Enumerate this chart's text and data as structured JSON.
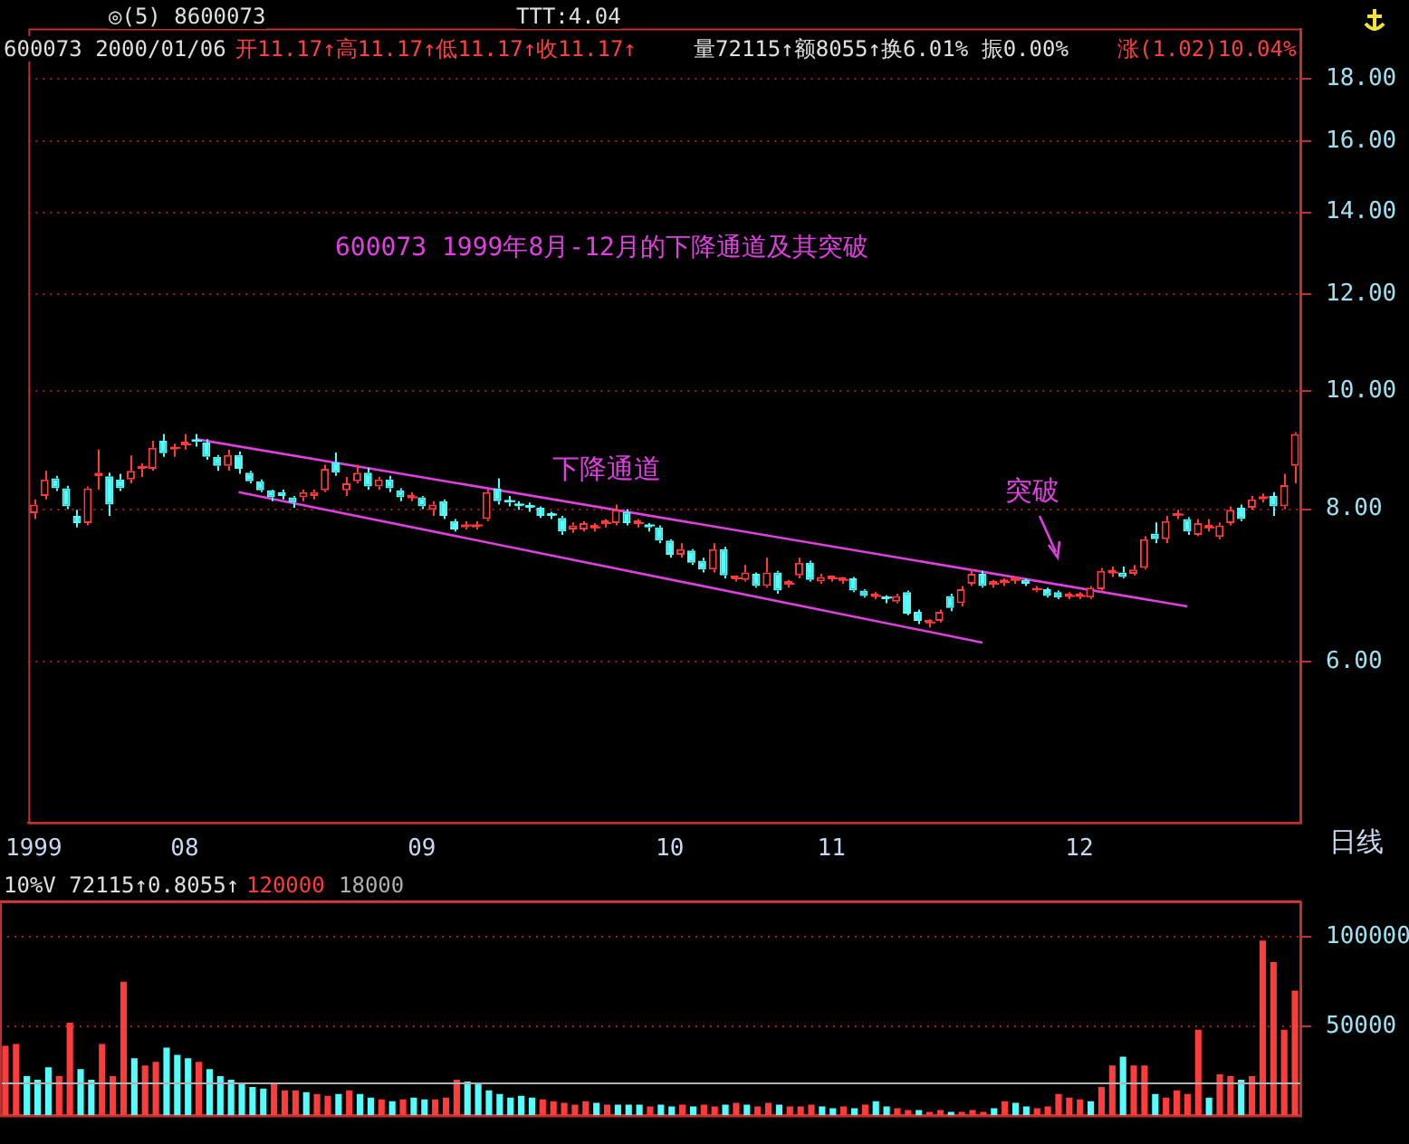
{
  "chart_data": [
    {
      "type": "candlestick",
      "title": "600073 1999年8月-12月的下降通道及其突破",
      "categories": [
        "1999",
        null,
        null,
        null,
        null,
        null,
        null,
        null,
        null,
        null,
        null,
        null,
        null,
        null,
        "08",
        null,
        null,
        null,
        null,
        null,
        null,
        null,
        null,
        null,
        null,
        null,
        null,
        null,
        null,
        null,
        null,
        null,
        null,
        null,
        null,
        null,
        "09",
        null,
        null,
        null,
        null,
        null,
        null,
        null,
        null,
        null,
        null,
        null,
        null,
        null,
        null,
        null,
        null,
        null,
        null,
        null,
        null,
        null,
        null,
        "10",
        null,
        null,
        null,
        null,
        null,
        null,
        null,
        null,
        null,
        null,
        null,
        null,
        null,
        null,
        "11",
        null,
        null,
        null,
        null,
        null,
        null,
        null,
        null,
        null,
        null,
        null,
        null,
        null,
        null,
        null,
        null,
        null,
        null,
        null,
        null,
        null,
        null,
        "12",
        null,
        null,
        null,
        null,
        null,
        null,
        null,
        null,
        null,
        null,
        null,
        null,
        null,
        null,
        null,
        null,
        null,
        null,
        null,
        null
      ],
      "ohlc": [
        [
          7.94,
          8.15,
          7.85,
          8.07
        ],
        [
          8.2,
          8.6,
          8.15,
          8.46
        ],
        [
          8.48,
          8.52,
          8.28,
          8.32
        ],
        [
          8.32,
          8.36,
          8.0,
          8.04
        ],
        [
          7.9,
          7.99,
          7.73,
          7.79
        ],
        [
          7.79,
          8.35,
          7.76,
          8.32
        ],
        [
          8.51,
          8.95,
          8.3,
          8.57
        ],
        [
          8.51,
          8.57,
          7.9,
          8.07
        ],
        [
          8.46,
          8.55,
          8.28,
          8.32
        ],
        [
          8.46,
          8.85,
          8.4,
          8.6
        ],
        [
          8.63,
          8.72,
          8.5,
          8.66
        ],
        [
          8.63,
          9.1,
          8.6,
          8.98
        ],
        [
          9.1,
          9.22,
          8.83,
          8.89
        ],
        [
          8.95,
          9.05,
          8.83,
          8.98
        ],
        [
          9.04,
          9.22,
          8.95,
          9.04
        ],
        [
          9.1,
          9.22,
          9.0,
          9.08
        ],
        [
          9.07,
          9.13,
          8.78,
          8.83
        ],
        [
          8.83,
          8.86,
          8.6,
          8.68
        ],
        [
          8.68,
          8.95,
          8.6,
          8.86
        ],
        [
          8.86,
          8.92,
          8.55,
          8.63
        ],
        [
          8.57,
          8.6,
          8.4,
          8.43
        ],
        [
          8.43,
          8.46,
          8.26,
          8.29
        ],
        [
          8.29,
          8.3,
          8.12,
          8.18
        ],
        [
          8.26,
          8.3,
          8.15,
          8.2
        ],
        [
          8.18,
          8.2,
          8.02,
          8.1
        ],
        [
          8.18,
          8.3,
          8.12,
          8.26
        ],
        [
          8.2,
          8.3,
          8.15,
          8.26
        ],
        [
          8.29,
          8.7,
          8.26,
          8.63
        ],
        [
          8.74,
          8.9,
          8.52,
          8.57
        ],
        [
          8.29,
          8.5,
          8.2,
          8.4
        ],
        [
          8.43,
          8.7,
          8.4,
          8.57
        ],
        [
          8.57,
          8.65,
          8.3,
          8.35
        ],
        [
          8.35,
          8.5,
          8.3,
          8.46
        ],
        [
          8.46,
          8.52,
          8.26,
          8.32
        ],
        [
          8.29,
          8.32,
          8.12,
          8.18
        ],
        [
          8.18,
          8.26,
          8.12,
          8.18
        ],
        [
          8.18,
          8.2,
          8.0,
          8.04
        ],
        [
          7.99,
          8.12,
          7.9,
          8.07
        ],
        [
          8.12,
          8.15,
          7.85,
          7.9
        ],
        [
          7.82,
          7.85,
          7.67,
          7.7
        ],
        [
          7.73,
          7.82,
          7.7,
          7.76
        ],
        [
          7.73,
          7.82,
          7.7,
          7.76
        ],
        [
          7.85,
          8.3,
          7.82,
          8.26
        ],
        [
          8.32,
          8.48,
          8.07,
          8.12
        ],
        [
          8.12,
          8.2,
          8.04,
          8.1
        ],
        [
          8.07,
          8.12,
          7.99,
          8.04
        ],
        [
          8.04,
          8.1,
          7.96,
          8.02
        ],
        [
          8.02,
          8.04,
          7.87,
          7.9
        ],
        [
          7.92,
          7.96,
          7.85,
          7.9
        ],
        [
          7.87,
          7.9,
          7.62,
          7.67
        ],
        [
          7.7,
          7.8,
          7.65,
          7.76
        ],
        [
          7.7,
          7.82,
          7.67,
          7.79
        ],
        [
          7.73,
          7.79,
          7.67,
          7.73
        ],
        [
          7.79,
          7.85,
          7.73,
          7.79
        ],
        [
          7.79,
          8.07,
          7.76,
          7.99
        ],
        [
          7.96,
          8.0,
          7.76,
          7.79
        ],
        [
          7.79,
          7.85,
          7.73,
          7.79
        ],
        [
          7.76,
          7.79,
          7.67,
          7.73
        ],
        [
          7.73,
          7.76,
          7.5,
          7.54
        ],
        [
          7.54,
          7.56,
          7.3,
          7.34
        ],
        [
          7.34,
          7.5,
          7.3,
          7.42
        ],
        [
          7.4,
          7.42,
          7.2,
          7.23
        ],
        [
          7.26,
          7.3,
          7.1,
          7.14
        ],
        [
          7.14,
          7.5,
          7.1,
          7.42
        ],
        [
          7.42,
          7.45,
          7.02,
          7.06
        ],
        [
          7.02,
          7.06,
          6.98,
          7.02
        ],
        [
          7.0,
          7.2,
          6.98,
          7.1
        ],
        [
          7.08,
          7.1,
          6.9,
          6.92
        ],
        [
          6.92,
          7.3,
          6.9,
          7.1
        ],
        [
          7.1,
          7.12,
          6.82,
          6.86
        ],
        [
          6.95,
          7.0,
          6.9,
          6.95
        ],
        [
          7.06,
          7.3,
          7.02,
          7.23
        ],
        [
          7.23,
          7.26,
          6.98,
          7.0
        ],
        [
          6.98,
          7.08,
          6.95,
          7.04
        ],
        [
          7.02,
          7.06,
          6.98,
          7.02
        ],
        [
          7.0,
          7.04,
          6.95,
          7.0
        ],
        [
          7.02,
          7.04,
          6.84,
          6.86
        ],
        [
          6.86,
          6.88,
          6.77,
          6.79
        ],
        [
          6.79,
          6.84,
          6.75,
          6.79
        ],
        [
          6.77,
          6.8,
          6.7,
          6.75
        ],
        [
          6.72,
          6.82,
          6.7,
          6.79
        ],
        [
          6.84,
          6.86,
          6.55,
          6.57
        ],
        [
          6.59,
          6.62,
          6.44,
          6.48
        ],
        [
          6.46,
          6.5,
          6.4,
          6.46
        ],
        [
          6.48,
          6.62,
          6.46,
          6.59
        ],
        [
          6.79,
          6.82,
          6.6,
          6.64
        ],
        [
          6.7,
          6.92,
          6.66,
          6.88
        ],
        [
          6.95,
          7.14,
          6.92,
          7.08
        ],
        [
          7.08,
          7.12,
          6.9,
          6.92
        ],
        [
          6.95,
          7.0,
          6.9,
          6.95
        ],
        [
          6.97,
          7.02,
          6.92,
          6.97
        ],
        [
          7.0,
          7.04,
          6.95,
          7.0
        ],
        [
          7.0,
          7.02,
          6.92,
          6.95
        ],
        [
          6.86,
          6.92,
          6.84,
          6.88
        ],
        [
          6.88,
          6.9,
          6.77,
          6.79
        ],
        [
          6.84,
          6.86,
          6.75,
          6.77
        ],
        [
          6.79,
          6.84,
          6.75,
          6.79
        ],
        [
          6.79,
          6.84,
          6.75,
          6.79
        ],
        [
          6.77,
          6.92,
          6.75,
          6.9
        ],
        [
          6.88,
          7.16,
          6.86,
          7.12
        ],
        [
          7.1,
          7.18,
          7.04,
          7.1
        ],
        [
          7.1,
          7.18,
          7.02,
          7.04
        ],
        [
          7.08,
          7.2,
          7.06,
          7.14
        ],
        [
          7.16,
          7.6,
          7.14,
          7.56
        ],
        [
          7.64,
          7.8,
          7.5,
          7.56
        ],
        [
          7.56,
          7.9,
          7.5,
          7.82
        ],
        [
          7.9,
          7.99,
          7.85,
          7.92
        ],
        [
          7.85,
          7.88,
          7.62,
          7.67
        ],
        [
          7.62,
          7.85,
          7.6,
          7.79
        ],
        [
          7.73,
          7.85,
          7.67,
          7.73
        ],
        [
          7.59,
          7.8,
          7.56,
          7.76
        ],
        [
          7.79,
          8.04,
          7.76,
          7.99
        ],
        [
          8.02,
          8.07,
          7.82,
          7.85
        ],
        [
          8.02,
          8.2,
          7.99,
          8.15
        ],
        [
          8.15,
          8.24,
          8.1,
          8.18
        ],
        [
          8.2,
          8.26,
          7.9,
          8.04
        ],
        [
          8.04,
          8.55,
          8.0,
          8.37
        ],
        [
          8.68,
          9.25,
          8.4,
          9.22
        ]
      ],
      "colors": [
        "#ff3c3c",
        "#ff3c3c",
        "#54fcfc",
        "#54fcfc",
        "#54fcfc",
        "#ff3c3c",
        "#ff3c3c",
        "#54fcfc",
        "#54fcfc",
        "#ff3c3c",
        "#ff3c3c",
        "#ff3c3c",
        "#54fcfc",
        "#ff3c3c",
        "#ff3c3c",
        "#54fcfc",
        "#54fcfc",
        "#54fcfc",
        "#ff3c3c",
        "#54fcfc",
        "#54fcfc",
        "#54fcfc",
        "#54fcfc",
        "#54fcfc",
        "#54fcfc",
        "#ff3c3c",
        "#ff3c3c",
        "#ff3c3c",
        "#54fcfc",
        "#ff3c3c",
        "#ff3c3c",
        "#54fcfc",
        "#ff3c3c",
        "#54fcfc",
        "#54fcfc",
        "#ff3c3c",
        "#54fcfc",
        "#ff3c3c",
        "#54fcfc",
        "#54fcfc",
        "#ff3c3c",
        "#ff3c3c",
        "#ff3c3c",
        "#54fcfc",
        "#54fcfc",
        "#54fcfc",
        "#54fcfc",
        "#54fcfc",
        "#54fcfc",
        "#54fcfc",
        "#ff3c3c",
        "#ff3c3c",
        "#ff3c3c",
        "#ff3c3c",
        "#ff3c3c",
        "#54fcfc",
        "#ff3c3c",
        "#54fcfc",
        "#54fcfc",
        "#54fcfc",
        "#ff3c3c",
        "#54fcfc",
        "#54fcfc",
        "#ff3c3c",
        "#54fcfc",
        "#ff3c3c",
        "#ff3c3c",
        "#54fcfc",
        "#ff3c3c",
        "#54fcfc",
        "#ff3c3c",
        "#ff3c3c",
        "#54fcfc",
        "#ff3c3c",
        "#ff3c3c",
        "#ff3c3c",
        "#54fcfc",
        "#54fcfc",
        "#ff3c3c",
        "#54fcfc",
        "#ff3c3c",
        "#54fcfc",
        "#54fcfc",
        "#ff3c3c",
        "#ff3c3c",
        "#54fcfc",
        "#ff3c3c",
        "#ff3c3c",
        "#54fcfc",
        "#ff3c3c",
        "#ff3c3c",
        "#ff3c3c",
        "#54fcfc",
        "#ff3c3c",
        "#54fcfc",
        "#54fcfc",
        "#ff3c3c",
        "#ff3c3c",
        "#ff3c3c",
        "#ff3c3c",
        "#ff3c3c",
        "#54fcfc",
        "#ff3c3c",
        "#ff3c3c",
        "#54fcfc",
        "#ff3c3c",
        "#ff3c3c",
        "#54fcfc",
        "#ff3c3c",
        "#ff3c3c",
        "#ff3c3c",
        "#ff3c3c",
        "#54fcfc",
        "#ff3c3c",
        "#ff3c3c",
        "#54fcfc",
        "#ff3c3c",
        "#ff3c3c"
      ],
      "series": [
        {
          "type": "line",
          "color": "#e040e0",
          "values": [
            null,
            null,
            null,
            null,
            null,
            null,
            null,
            null,
            null,
            null,
            null,
            null,
            null,
            null,
            null,
            9.13,
            null,
            null,
            null,
            null,
            null,
            null,
            null,
            null,
            null,
            null,
            null,
            null,
            null,
            null,
            null,
            null,
            null,
            null,
            null,
            null,
            null,
            null,
            null,
            null,
            null,
            null,
            null,
            null,
            null,
            null,
            null,
            null,
            null,
            null,
            null,
            null,
            null,
            null,
            null,
            null,
            null,
            null,
            null,
            null,
            null,
            null,
            null,
            null,
            null,
            null,
            null,
            null,
            null,
            null,
            null,
            null,
            null,
            null,
            null,
            null,
            null,
            null,
            null,
            null,
            null,
            null,
            null,
            null,
            null,
            null,
            null,
            null,
            null,
            null,
            null,
            null,
            null,
            null,
            null,
            null,
            null,
            null,
            null,
            null,
            null,
            null,
            null,
            null,
            null,
            null,
            null,
            6.66,
            null,
            null,
            null,
            null,
            null,
            null,
            null,
            null,
            null,
            null
          ]
        },
        {
          "type": "line",
          "color": "#e040e0",
          "values": [
            null,
            null,
            null,
            null,
            null,
            null,
            null,
            null,
            null,
            null,
            null,
            null,
            null,
            null,
            null,
            null,
            null,
            null,
            null,
            8.26,
            null,
            null,
            null,
            null,
            null,
            null,
            null,
            null,
            null,
            null,
            null,
            null,
            null,
            null,
            null,
            null,
            null,
            null,
            null,
            null,
            null,
            null,
            null,
            null,
            null,
            null,
            null,
            null,
            null,
            null,
            null,
            null,
            null,
            null,
            null,
            null,
            null,
            null,
            null,
            null,
            null,
            null,
            null,
            null,
            null,
            null,
            null,
            null,
            null,
            null,
            null,
            null,
            null,
            null,
            null,
            null,
            null,
            null,
            null,
            null,
            null,
            null,
            null,
            null,
            null,
            null,
            null,
            null,
            6.22,
            null,
            null,
            null,
            null,
            null,
            null,
            null,
            null,
            null,
            null,
            null,
            null,
            null,
            null,
            null,
            null,
            null,
            null,
            null,
            null,
            null,
            null,
            null,
            null,
            null,
            null,
            null,
            null,
            null
          ]
        }
      ],
      "log": true,
      "ylim": [
        4.43,
        19.8
      ],
      "yticks": [
        {
          "value": 6,
          "label": "6.00"
        },
        {
          "value": 8,
          "label": "8.00"
        },
        {
          "value": 10,
          "label": "10.00"
        },
        {
          "value": 12,
          "label": "12.00"
        },
        {
          "value": 14,
          "label": "14.00"
        },
        {
          "value": 16,
          "label": "16.00"
        },
        {
          "value": 18,
          "label": "18.00"
        }
      ],
      "grid": "y",
      "legend": false,
      "marker": "none",
      "line_style": "solid",
      "annotations": [
        "◎(5) 8600073",
        "TTT:4.04",
        "600073 2000/01/06",
        "开11.17↑高11.17↑低11.17↑收11.17↑",
        "量72115↑额8055↑换6.01% 振0.00%",
        "涨(1.02)10.04%",
        "下降通道",
        "突破",
        "日线"
      ]
    },
    {
      "type": "bar",
      "categories": [
        null,
        null,
        null,
        null,
        null,
        null,
        null,
        null,
        null,
        null,
        null,
        null,
        null,
        null,
        null,
        null,
        null,
        null,
        null,
        null,
        null,
        null,
        null,
        null,
        null,
        null,
        null,
        null,
        null,
        null,
        null,
        null,
        null,
        null,
        null,
        null,
        null,
        null,
        null,
        null,
        null,
        null,
        null,
        null,
        null,
        null,
        null,
        null,
        null,
        null,
        null,
        null,
        null,
        null,
        null,
        null,
        null,
        null,
        null,
        null,
        null,
        null,
        null,
        null,
        null,
        null,
        null,
        null,
        null,
        null,
        null,
        null,
        null,
        null,
        null,
        null,
        null,
        null,
        null,
        null,
        null,
        null,
        null,
        null,
        null,
        null,
        null,
        null,
        null,
        null,
        null,
        null,
        null,
        null,
        null,
        null,
        null,
        null,
        null,
        null,
        null,
        null,
        null,
        null,
        null,
        null,
        null,
        null,
        null,
        null,
        null,
        null,
        null,
        null,
        null,
        null,
        null,
        null,
        null,
        null,
        null
      ],
      "values": [
        39000,
        40000,
        22000,
        20000,
        27000,
        22000,
        52000,
        26000,
        20000,
        40000,
        22000,
        75000,
        32000,
        28000,
        30000,
        38000,
        34000,
        32000,
        30000,
        26000,
        22000,
        20000,
        18000,
        16000,
        15000,
        18000,
        14000,
        14000,
        13000,
        12000,
        11000,
        12000,
        14000,
        12000,
        10000,
        9000,
        8000,
        9000,
        10000,
        9000,
        9000,
        10000,
        20000,
        19000,
        18000,
        14000,
        12000,
        10000,
        11000,
        10000,
        9000,
        8000,
        7000,
        6000,
        8000,
        7000,
        6000,
        6000,
        6000,
        6000,
        5000,
        6000,
        5000,
        6000,
        5000,
        6000,
        5000,
        6000,
        7000,
        6000,
        5000,
        7000,
        6000,
        5000,
        5000,
        6000,
        5000,
        4000,
        5000,
        4000,
        6000,
        8000,
        5000,
        4000,
        3000,
        3000,
        2000,
        3000,
        2000,
        2000,
        3000,
        2000,
        4000,
        8000,
        7000,
        5000,
        4000,
        5000,
        12000,
        10000,
        9000,
        8000,
        16000,
        28000,
        33000,
        28000,
        28000,
        12000,
        10000,
        14000,
        12000,
        48000,
        10000,
        23000,
        22000,
        20000,
        22000,
        98000,
        86000,
        48000,
        70000
      ],
      "colors": [
        "#ff3c3c",
        "#ff3c3c",
        "#54fcfc",
        "#54fcfc",
        "#54fcfc",
        "#ff3c3c",
        "#ff3c3c",
        "#54fcfc",
        "#54fcfc",
        "#ff3c3c",
        "#ff3c3c",
        "#ff3c3c",
        "#54fcfc",
        "#ff3c3c",
        "#ff3c3c",
        "#54fcfc",
        "#54fcfc",
        "#54fcfc",
        "#ff3c3c",
        "#54fcfc",
        "#54fcfc",
        "#54fcfc",
        "#54fcfc",
        "#54fcfc",
        "#54fcfc",
        "#ff3c3c",
        "#ff3c3c",
        "#ff3c3c",
        "#54fcfc",
        "#ff3c3c",
        "#ff3c3c",
        "#54fcfc",
        "#ff3c3c",
        "#54fcfc",
        "#54fcfc",
        "#ff3c3c",
        "#54fcfc",
        "#ff3c3c",
        "#54fcfc",
        "#54fcfc",
        "#ff3c3c",
        "#ff3c3c",
        "#ff3c3c",
        "#54fcfc",
        "#54fcfc",
        "#54fcfc",
        "#54fcfc",
        "#54fcfc",
        "#54fcfc",
        "#54fcfc",
        "#ff3c3c",
        "#ff3c3c",
        "#ff3c3c",
        "#ff3c3c",
        "#ff3c3c",
        "#54fcfc",
        "#ff3c3c",
        "#54fcfc",
        "#54fcfc",
        "#54fcfc",
        "#ff3c3c",
        "#54fcfc",
        "#54fcfc",
        "#ff3c3c",
        "#54fcfc",
        "#ff3c3c",
        "#ff3c3c",
        "#54fcfc",
        "#ff3c3c",
        "#54fcfc",
        "#ff3c3c",
        "#ff3c3c",
        "#54fcfc",
        "#ff3c3c",
        "#ff3c3c",
        "#ff3c3c",
        "#54fcfc",
        "#54fcfc",
        "#ff3c3c",
        "#54fcfc",
        "#ff3c3c",
        "#54fcfc",
        "#54fcfc",
        "#ff3c3c",
        "#ff3c3c",
        "#54fcfc",
        "#ff3c3c",
        "#ff3c3c",
        "#54fcfc",
        "#ff3c3c",
        "#ff3c3c",
        "#ff3c3c",
        "#54fcfc",
        "#ff3c3c",
        "#54fcfc",
        "#54fcfc",
        "#ff3c3c",
        "#ff3c3c",
        "#ff3c3c",
        "#ff3c3c",
        "#ff3c3c",
        "#54fcfc",
        "#ff3c3c",
        "#ff3c3c",
        "#54fcfc",
        "#ff3c3c",
        "#ff3c3c",
        "#54fcfc",
        "#ff3c3c",
        "#ff3c3c",
        "#ff3c3c",
        "#ff3c3c",
        "#54fcfc",
        "#ff3c3c",
        "#ff3c3c",
        "#54fcfc",
        "#ff3c3c",
        "#ff3c3c",
        "#ff3c3c",
        "#ff3c3c",
        "#ff3c3c"
      ],
      "ylim": [
        0,
        120000
      ],
      "yticks": [
        50000,
        100000
      ],
      "grid": "y",
      "legend": false,
      "tick_labels": "y",
      "ref_lines": [
        {
          "axis": "y",
          "value": 120000,
          "label": "120000",
          "color": "#ff3c3c"
        },
        {
          "axis": "y",
          "value": 18000,
          "label": "18000",
          "color": "#b0b0b0"
        }
      ],
      "annotations": [
        "10%V 72115↑0.8055↑"
      ]
    }
  ]
}
